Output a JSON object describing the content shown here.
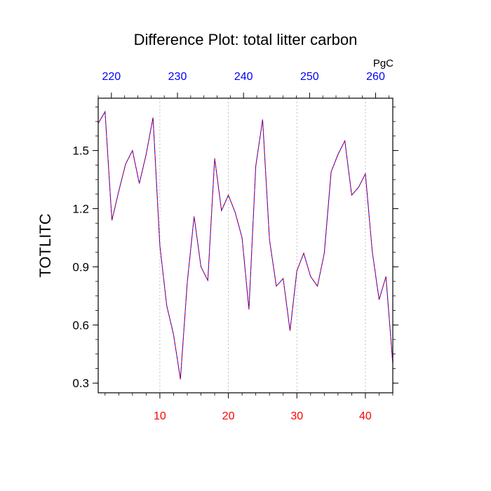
{
  "chart_data": {
    "type": "line",
    "title": "Difference Plot: total litter carbon",
    "ylabel": "TOTLITC",
    "units_label": "PgC",
    "xlim": [
      1,
      44
    ],
    "ylim": [
      0.25,
      1.77
    ],
    "yticks": [
      "0.3",
      "0.6",
      "0.9",
      "1.2",
      "1.5"
    ],
    "yticks_values": [
      0.3,
      0.6,
      0.9,
      1.2,
      1.5
    ],
    "xticks_bottom": [
      "10",
      "20",
      "30",
      "40"
    ],
    "xticks_bottom_values": [
      10,
      20,
      30,
      40
    ],
    "xticks_top": [
      "220",
      "230",
      "240",
      "250",
      "260"
    ],
    "xticks_top_values": [
      220,
      230,
      240,
      250,
      260
    ],
    "top_axis_offset": 0,
    "bottom_tick_color": "#ff0000",
    "top_tick_color": "#0000ff",
    "line_color_1": "#0000ff",
    "line_color_2": "#ff0000",
    "grid": "vertical-dashed",
    "x": [
      1,
      2,
      3,
      4,
      5,
      6,
      7,
      8,
      9,
      10,
      11,
      12,
      13,
      14,
      15,
      16,
      17,
      18,
      19,
      20,
      21,
      22,
      23,
      24,
      25,
      26,
      27,
      28,
      29,
      30,
      31,
      32,
      33,
      34,
      35,
      36,
      37,
      38,
      39,
      40,
      41,
      42,
      43,
      44
    ],
    "y": [
      1.64,
      1.7,
      1.14,
      1.29,
      1.43,
      1.5,
      1.33,
      1.48,
      1.67,
      1.01,
      0.7,
      0.55,
      0.32,
      0.82,
      1.16,
      0.9,
      0.83,
      1.46,
      1.19,
      1.27,
      1.18,
      1.05,
      0.68,
      1.42,
      1.66,
      1.04,
      0.8,
      0.84,
      0.57,
      0.88,
      0.97,
      0.85,
      0.8,
      0.97,
      1.39,
      1.48,
      1.55,
      1.27,
      1.31,
      1.38,
      0.98,
      0.73,
      0.85,
      0.4
    ]
  }
}
